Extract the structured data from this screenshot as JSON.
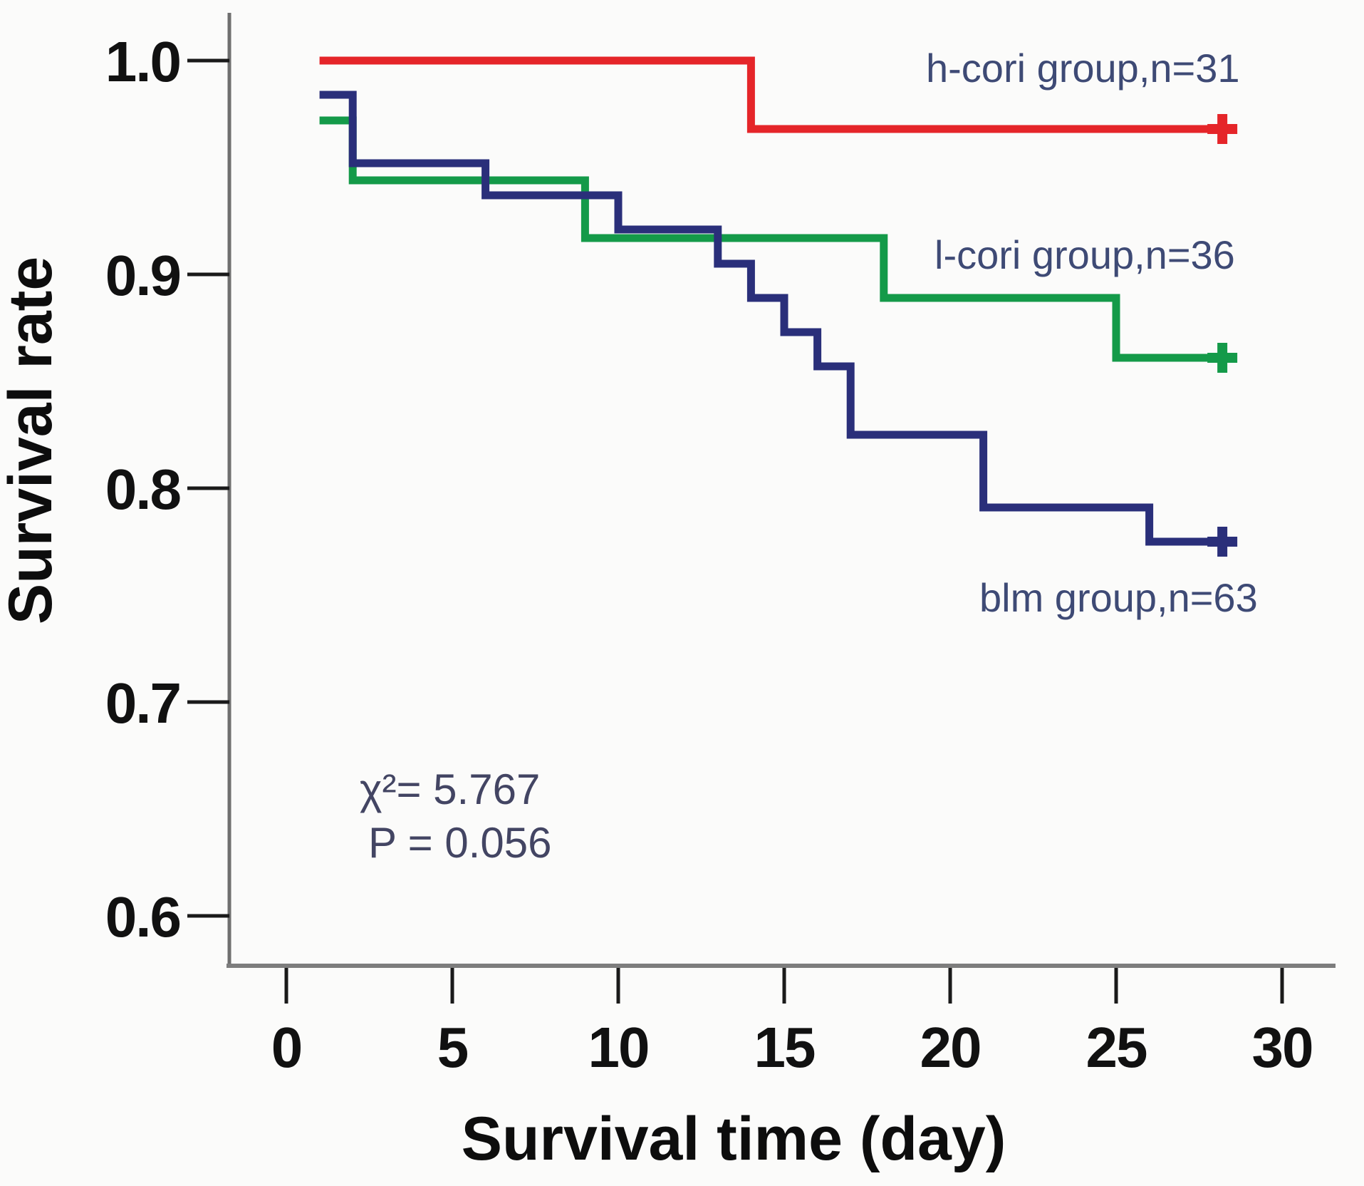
{
  "page": {
    "background_color": "#fbfbfa"
  },
  "chart_data": {
    "type": "line",
    "subtype": "kaplan-meier-step-survival-curves",
    "title": "",
    "xlabel": "Survival time (day)",
    "ylabel": "Survival rate",
    "xlim": [
      -1.7,
      31.6
    ],
    "ylim": [
      0.577,
      1.022
    ],
    "grid": false,
    "legend_position": "inline-labels-right",
    "x_ticks": [
      {
        "value": 0,
        "label": "0"
      },
      {
        "value": 5,
        "label": "5"
      },
      {
        "value": 10,
        "label": "10"
      },
      {
        "value": 15,
        "label": "15"
      },
      {
        "value": 20,
        "label": "20"
      },
      {
        "value": 25,
        "label": "25"
      },
      {
        "value": 30,
        "label": "30"
      }
    ],
    "y_ticks": [
      {
        "value": 1.0,
        "label": "1.0"
      },
      {
        "value": 0.9,
        "label": "0.9"
      },
      {
        "value": 0.8,
        "label": "0.8"
      },
      {
        "value": 0.7,
        "label": "0.7"
      },
      {
        "value": 0.6,
        "label": "0.6"
      }
    ],
    "annotations": {
      "chi_square_label": "χ²= 5.767",
      "chi_square_value": 5.767,
      "p_value_label": "P = 0.056",
      "p_value": 0.056
    },
    "series": [
      {
        "name": "h-cori group",
        "label": "h-cori group,n=31",
        "n": 31,
        "color": "#e52529",
        "points": [
          [
            1,
            1.0
          ],
          [
            14,
            1.0
          ],
          [
            14,
            0.968
          ],
          [
            28.2,
            0.968
          ]
        ],
        "censor_marks": [
          [
            28.2,
            0.968
          ]
        ]
      },
      {
        "name": "l-cori group",
        "label": "l-cori group,n=36",
        "n": 36,
        "color": "#149a49",
        "points": [
          [
            1,
            0.972
          ],
          [
            2,
            0.972
          ],
          [
            2,
            0.944
          ],
          [
            9,
            0.944
          ],
          [
            9,
            0.917
          ],
          [
            18,
            0.917
          ],
          [
            18,
            0.889
          ],
          [
            25,
            0.889
          ],
          [
            25,
            0.861
          ],
          [
            28.2,
            0.861
          ]
        ],
        "censor_marks": [
          [
            28.2,
            0.861
          ]
        ]
      },
      {
        "name": "blm group",
        "label": "blm group,n=63",
        "n": 63,
        "color": "#2a2f7a",
        "points": [
          [
            1,
            0.984
          ],
          [
            2,
            0.984
          ],
          [
            2,
            0.952
          ],
          [
            6,
            0.952
          ],
          [
            6,
            0.937
          ],
          [
            10,
            0.937
          ],
          [
            10,
            0.921
          ],
          [
            13,
            0.921
          ],
          [
            13,
            0.905
          ],
          [
            14,
            0.905
          ],
          [
            14,
            0.889
          ],
          [
            15,
            0.889
          ],
          [
            15,
            0.873
          ],
          [
            16,
            0.873
          ],
          [
            16,
            0.857
          ],
          [
            17,
            0.857
          ],
          [
            17,
            0.825
          ],
          [
            21,
            0.825
          ],
          [
            21,
            0.791
          ],
          [
            26,
            0.791
          ],
          [
            26,
            0.775
          ],
          [
            28.2,
            0.775
          ]
        ],
        "censor_marks": [
          [
            28.2,
            0.775
          ]
        ]
      }
    ]
  }
}
